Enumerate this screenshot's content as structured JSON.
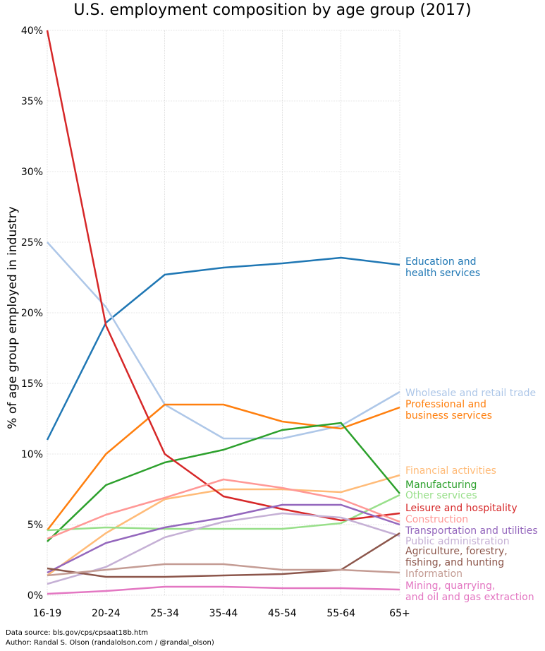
{
  "chart_data": {
    "type": "line",
    "title": "U.S. employment composition by age group (2017)",
    "xlabel": "",
    "ylabel": "% of age group employed in industry",
    "categories": [
      "16-19",
      "20-24",
      "25-34",
      "35-44",
      "45-54",
      "55-64",
      "65+"
    ],
    "ylim": [
      0,
      40
    ],
    "yticks": [
      "0%",
      "5%",
      "10%",
      "15%",
      "20%",
      "25%",
      "30%",
      "35%",
      "40%"
    ],
    "grid": true,
    "legend": "inline-right",
    "series": [
      {
        "name": "Education and health services",
        "color": "#1f77b4",
        "values": [
          11.0,
          19.3,
          22.7,
          23.2,
          23.5,
          23.9,
          23.4
        ]
      },
      {
        "name": "Wholesale and retail trade",
        "color": "#aec7e8",
        "values": [
          25.0,
          20.4,
          13.5,
          11.1,
          11.1,
          12.0,
          14.4
        ]
      },
      {
        "name": "Professional and business services",
        "color": "#ff7f0e",
        "values": [
          4.6,
          10.0,
          13.5,
          13.5,
          12.3,
          11.8,
          13.3
        ]
      },
      {
        "name": "Financial activities",
        "color": "#ffbb78",
        "values": [
          1.4,
          4.4,
          6.8,
          7.5,
          7.5,
          7.3,
          8.5
        ]
      },
      {
        "name": "Manufacturing",
        "color": "#2ca02c",
        "values": [
          3.8,
          7.8,
          9.4,
          10.3,
          11.7,
          12.2,
          7.2
        ]
      },
      {
        "name": "Other services",
        "color": "#98df8a",
        "values": [
          4.6,
          4.8,
          4.7,
          4.7,
          4.7,
          5.1,
          7.1
        ]
      },
      {
        "name": "Leisure and hospitality",
        "color": "#d62728",
        "values": [
          40.0,
          19.1,
          10.0,
          7.0,
          6.1,
          5.3,
          5.8
        ]
      },
      {
        "name": "Construction",
        "color": "#ff9896",
        "values": [
          4.0,
          5.7,
          6.9,
          8.2,
          7.6,
          6.8,
          5.2
        ]
      },
      {
        "name": "Transportation and utilities",
        "color": "#9467bd",
        "values": [
          1.6,
          3.7,
          4.8,
          5.5,
          6.4,
          6.4,
          5.0
        ]
      },
      {
        "name": "Public administration",
        "color": "#c5b0d5",
        "values": [
          0.8,
          2.0,
          4.1,
          5.2,
          5.8,
          5.5,
          4.2
        ]
      },
      {
        "name": "Agriculture, forestry, fishing, and hunting",
        "color": "#8c564b",
        "values": [
          1.9,
          1.3,
          1.3,
          1.4,
          1.5,
          1.8,
          4.4
        ]
      },
      {
        "name": "Information",
        "color": "#c49c94",
        "values": [
          1.4,
          1.8,
          2.2,
          2.2,
          1.8,
          1.8,
          1.6
        ]
      },
      {
        "name": "Mining, quarrying, and oil and gas extraction",
        "color": "#e377c2",
        "values": [
          0.1,
          0.3,
          0.6,
          0.6,
          0.5,
          0.5,
          0.4
        ]
      }
    ],
    "labels": [
      {
        "lines": [
          "Education and",
          "health services"
        ],
        "color": "#1f77b4"
      },
      {
        "lines": [
          "Wholesale and retail trade"
        ],
        "color": "#aec7e8"
      },
      {
        "lines": [
          "Professional and",
          "business services"
        ],
        "color": "#ff7f0e"
      },
      {
        "lines": [
          "Financial activities"
        ],
        "color": "#ffbb78"
      },
      {
        "lines": [
          "Manufacturing"
        ],
        "color": "#2ca02c"
      },
      {
        "lines": [
          "Other services"
        ],
        "color": "#98df8a"
      },
      {
        "lines": [
          "Leisure and hospitality"
        ],
        "color": "#d62728"
      },
      {
        "lines": [
          "Construction"
        ],
        "color": "#ff9896"
      },
      {
        "lines": [
          "Transportation and utilities"
        ],
        "color": "#9467bd"
      },
      {
        "lines": [
          "Public administration"
        ],
        "color": "#c5b0d5"
      },
      {
        "lines": [
          "Agriculture, forestry,",
          "fishing, and hunting"
        ],
        "color": "#8c564b"
      },
      {
        "lines": [
          "Information"
        ],
        "color": "#c49c94"
      },
      {
        "lines": [
          "Mining, quarrying,",
          "and oil and gas extraction"
        ],
        "color": "#e377c2"
      }
    ]
  },
  "footer": {
    "source": "Data source: bls.gov/cps/cpsaat18b.htm",
    "author": "Author: Randal S. Olson (randalolson.com / @randal_olson)"
  }
}
